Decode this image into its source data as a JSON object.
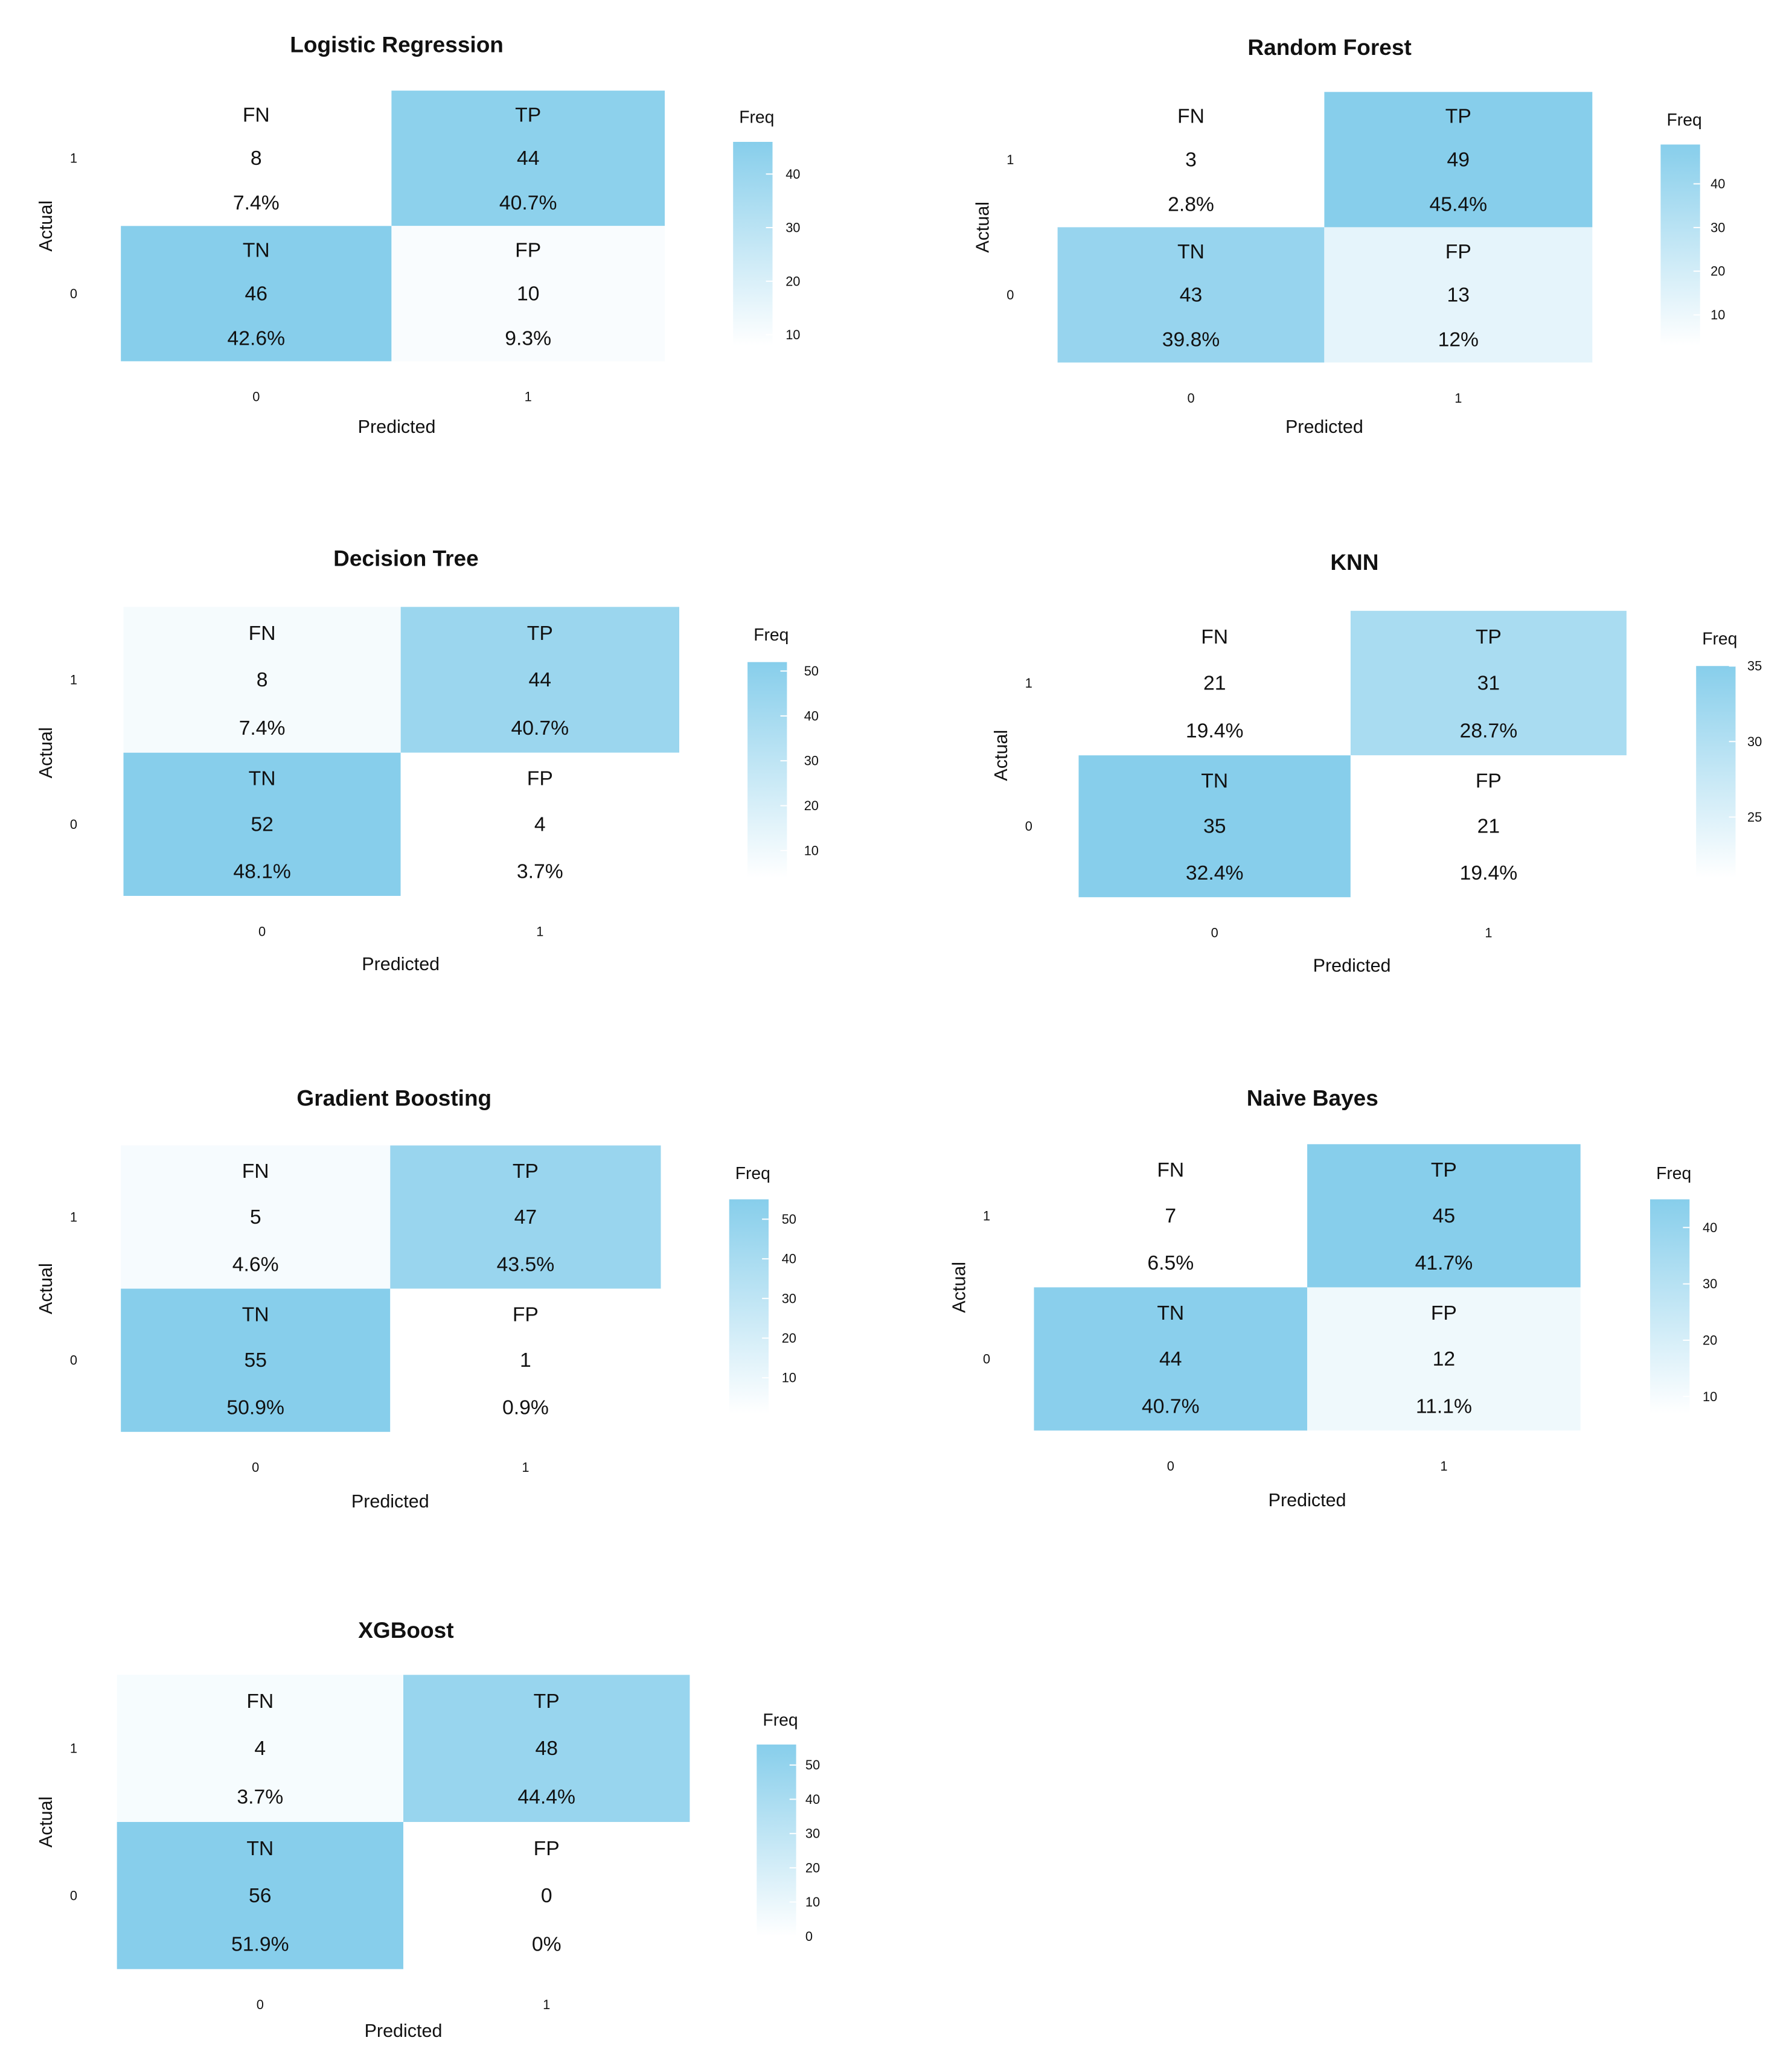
{
  "chart_data": [
    {
      "type": "heatmap",
      "title": "Logistic Regression",
      "xlabel": "Predicted",
      "ylabel": "Actual",
      "x_ticks": [
        "0",
        "1"
      ],
      "y_ticks": [
        "0",
        "1"
      ],
      "legend_title": "Freq",
      "legend_range": [
        8,
        46
      ],
      "legend_ticks": [
        "10",
        "20",
        "30",
        "40"
      ],
      "cells": [
        {
          "actual": "1",
          "predicted": "0",
          "label": "FN",
          "value": 8,
          "percent": "7.4%"
        },
        {
          "actual": "1",
          "predicted": "1",
          "label": "TP",
          "value": 44,
          "percent": "40.7%"
        },
        {
          "actual": "0",
          "predicted": "0",
          "label": "TN",
          "value": 46,
          "percent": "42.6%"
        },
        {
          "actual": "0",
          "predicted": "1",
          "label": "FP",
          "value": 10,
          "percent": "9.3%"
        }
      ]
    },
    {
      "type": "heatmap",
      "title": "Random Forest",
      "xlabel": "Predicted",
      "ylabel": "Actual",
      "x_ticks": [
        "0",
        "1"
      ],
      "y_ticks": [
        "0",
        "1"
      ],
      "legend_title": "Freq",
      "legend_range": [
        3,
        49
      ],
      "legend_ticks": [
        "10",
        "20",
        "30",
        "40"
      ],
      "cells": [
        {
          "actual": "1",
          "predicted": "0",
          "label": "FN",
          "value": 3,
          "percent": "2.8%"
        },
        {
          "actual": "1",
          "predicted": "1",
          "label": "TP",
          "value": 49,
          "percent": "45.4%"
        },
        {
          "actual": "0",
          "predicted": "0",
          "label": "TN",
          "value": 43,
          "percent": "39.8%"
        },
        {
          "actual": "0",
          "predicted": "1",
          "label": "FP",
          "value": 13,
          "percent": "12%"
        }
      ]
    },
    {
      "type": "heatmap",
      "title": "Decision Tree",
      "xlabel": "Predicted",
      "ylabel": "Actual",
      "x_ticks": [
        "0",
        "1"
      ],
      "y_ticks": [
        "0",
        "1"
      ],
      "legend_title": "Freq",
      "legend_range": [
        4,
        52
      ],
      "legend_ticks": [
        "10",
        "20",
        "30",
        "40",
        "50"
      ],
      "cells": [
        {
          "actual": "1",
          "predicted": "0",
          "label": "FN",
          "value": 8,
          "percent": "7.4%"
        },
        {
          "actual": "1",
          "predicted": "1",
          "label": "TP",
          "value": 44,
          "percent": "40.7%"
        },
        {
          "actual": "0",
          "predicted": "0",
          "label": "TN",
          "value": 52,
          "percent": "48.1%"
        },
        {
          "actual": "0",
          "predicted": "1",
          "label": "FP",
          "value": 4,
          "percent": "3.7%"
        }
      ]
    },
    {
      "type": "heatmap",
      "title": "KNN",
      "xlabel": "Predicted",
      "ylabel": "Actual",
      "x_ticks": [
        "0",
        "1"
      ],
      "y_ticks": [
        "0",
        "1"
      ],
      "legend_title": "Freq",
      "legend_range": [
        21,
        35
      ],
      "legend_ticks": [
        "25",
        "30",
        "35"
      ],
      "cells": [
        {
          "actual": "1",
          "predicted": "0",
          "label": "FN",
          "value": 21,
          "percent": "19.4%"
        },
        {
          "actual": "1",
          "predicted": "1",
          "label": "TP",
          "value": 31,
          "percent": "28.7%"
        },
        {
          "actual": "0",
          "predicted": "0",
          "label": "TN",
          "value": 35,
          "percent": "32.4%"
        },
        {
          "actual": "0",
          "predicted": "1",
          "label": "FP",
          "value": 21,
          "percent": "19.4%"
        }
      ]
    },
    {
      "type": "heatmap",
      "title": "Gradient Boosting",
      "xlabel": "Predicted",
      "ylabel": "Actual",
      "x_ticks": [
        "0",
        "1"
      ],
      "y_ticks": [
        "0",
        "1"
      ],
      "legend_title": "Freq",
      "legend_range": [
        1,
        55
      ],
      "legend_ticks": [
        "10",
        "20",
        "30",
        "40",
        "50"
      ],
      "cells": [
        {
          "actual": "1",
          "predicted": "0",
          "label": "FN",
          "value": 5,
          "percent": "4.6%"
        },
        {
          "actual": "1",
          "predicted": "1",
          "label": "TP",
          "value": 47,
          "percent": "43.5%"
        },
        {
          "actual": "0",
          "predicted": "0",
          "label": "TN",
          "value": 55,
          "percent": "50.9%"
        },
        {
          "actual": "0",
          "predicted": "1",
          "label": "FP",
          "value": 1,
          "percent": "0.9%"
        }
      ]
    },
    {
      "type": "heatmap",
      "title": "Naive Bayes",
      "xlabel": "Predicted",
      "ylabel": "Actual",
      "x_ticks": [
        "0",
        "1"
      ],
      "y_ticks": [
        "0",
        "1"
      ],
      "legend_title": "Freq",
      "legend_range": [
        7,
        45
      ],
      "legend_ticks": [
        "10",
        "20",
        "30",
        "40"
      ],
      "cells": [
        {
          "actual": "1",
          "predicted": "0",
          "label": "FN",
          "value": 7,
          "percent": "6.5%"
        },
        {
          "actual": "1",
          "predicted": "1",
          "label": "TP",
          "value": 45,
          "percent": "41.7%"
        },
        {
          "actual": "0",
          "predicted": "0",
          "label": "TN",
          "value": 44,
          "percent": "40.7%"
        },
        {
          "actual": "0",
          "predicted": "1",
          "label": "FP",
          "value": 12,
          "percent": "11.1%"
        }
      ]
    },
    {
      "type": "heatmap",
      "title": "XGBoost",
      "xlabel": "Predicted",
      "ylabel": "Actual",
      "x_ticks": [
        "0",
        "1"
      ],
      "y_ticks": [
        "0",
        "1"
      ],
      "legend_title": "Freq",
      "legend_range": [
        0,
        56
      ],
      "legend_ticks": [
        "0",
        "10",
        "20",
        "30",
        "40",
        "50"
      ],
      "cells": [
        {
          "actual": "1",
          "predicted": "0",
          "label": "FN",
          "value": 4,
          "percent": "3.7%"
        },
        {
          "actual": "1",
          "predicted": "1",
          "label": "TP",
          "value": 48,
          "percent": "44.4%"
        },
        {
          "actual": "0",
          "predicted": "0",
          "label": "TN",
          "value": 56,
          "percent": "51.9%"
        },
        {
          "actual": "0",
          "predicted": "1",
          "label": "FP",
          "value": 0,
          "percent": "0%"
        }
      ]
    }
  ],
  "colors": {
    "low": "#ffffff",
    "high": "#87ceeb"
  }
}
